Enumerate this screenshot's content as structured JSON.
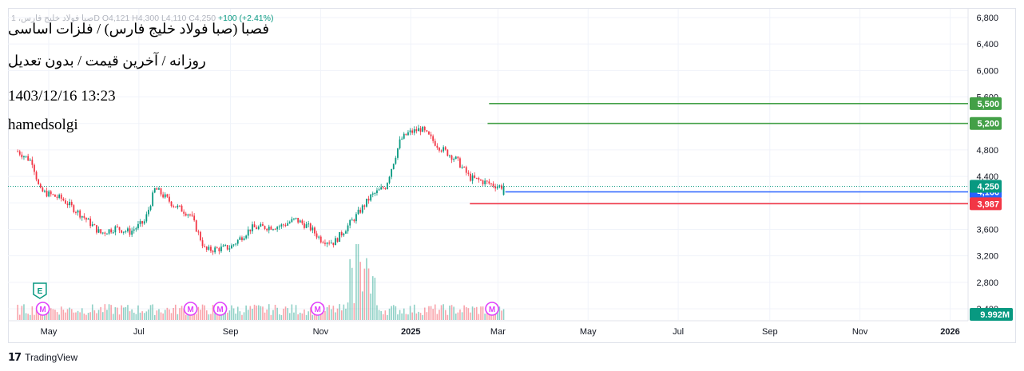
{
  "header": {
    "ohlc_text": "صبا فولاد خلیج فارس، 1D  O4,121  H4,300  L4,110  C4,250",
    "change_text": "+100 (+2.41%)"
  },
  "overlay": {
    "title": "فصبا (صبا فولاد خلیج فارس) / فلزات اساسی",
    "subtitle": "روزانه / آخرین قیمت / بدون تعدیل",
    "datetime": "1403/12/16 13:23",
    "author": "hamedsolgi"
  },
  "footer": {
    "brand": "TradingView",
    "brand_icon": "tradingview-logo-icon"
  },
  "colors": {
    "up": "#089981",
    "down": "#f23645",
    "grid": "#f0f3fa",
    "blue_line": "#2962ff",
    "green_line": "#43a047",
    "red_line": "#f23645",
    "dotted_last": "#089981",
    "event_m": "#e040fb"
  },
  "chart_data": {
    "type": "candlestick",
    "symbol": "فصبا",
    "timeframe": "1D",
    "ohlc": {
      "open": 4121,
      "high": 4300,
      "low": 4110,
      "close": 4250,
      "change": "+100 (+2.41%)"
    },
    "y_axis": {
      "ticks": [
        "6,800",
        "6,400",
        "6,000",
        "5,600",
        "5,200",
        "4,800",
        "4,400",
        "4,000",
        "3,600",
        "3,200",
        "2,800",
        "2,400"
      ],
      "tick_values": [
        6800,
        6400,
        6000,
        5600,
        5200,
        4800,
        4400,
        4000,
        3600,
        3200,
        2800,
        2400
      ],
      "range": [
        2250,
        6950
      ]
    },
    "x_axis": {
      "ticks": [
        "May",
        "Jul",
        "Sep",
        "Nov",
        "2025",
        "Mar",
        "May",
        "Jul",
        "Sep",
        "Nov",
        "2026"
      ],
      "bold": [
        "2025",
        "2026"
      ]
    },
    "price_path": [
      [
        "2024-04-10",
        4780
      ],
      [
        "2024-04-20",
        4620
      ],
      [
        "2024-04-25",
        4180
      ],
      [
        "2024-05-10",
        4060
      ],
      [
        "2024-05-25",
        3780
      ],
      [
        "2024-06-05",
        3540
      ],
      [
        "2024-06-15",
        3620
      ],
      [
        "2024-06-25",
        3560
      ],
      [
        "2024-07-05",
        3720
      ],
      [
        "2024-07-12",
        4220
      ],
      [
        "2024-07-25",
        3960
      ],
      [
        "2024-08-05",
        3820
      ],
      [
        "2024-08-15",
        3280
      ],
      [
        "2024-09-01",
        3330
      ],
      [
        "2024-09-15",
        3620
      ],
      [
        "2024-10-05",
        3650
      ],
      [
        "2024-10-15",
        3750
      ],
      [
        "2024-10-25",
        3620
      ],
      [
        "2024-11-01",
        3450
      ],
      [
        "2024-11-10",
        3400
      ],
      [
        "2024-11-25",
        3800
      ],
      [
        "2024-12-05",
        4100
      ],
      [
        "2024-12-15",
        4250
      ],
      [
        "2024-12-25",
        4950
      ],
      [
        "2024-12-30",
        5050
      ],
      [
        "2025-01-08",
        5120
      ],
      [
        "2025-01-20",
        4850
      ],
      [
        "2025-02-01",
        4650
      ],
      [
        "2025-02-10",
        4380
      ],
      [
        "2025-02-22",
        4300
      ],
      [
        "2025-03-01",
        4250
      ],
      [
        "2025-03-06",
        4250
      ]
    ],
    "volume_label": "9.992M",
    "horizontal_lines": [
      {
        "label": "5,500",
        "value": 5500,
        "color": "#43a047",
        "start": "2025-02-23"
      },
      {
        "label": "5,200",
        "value": 5200,
        "color": "#43a047",
        "start": "2025-02-22"
      },
      {
        "label": "4,166",
        "value": 4166,
        "color": "#2962ff",
        "start": "2025-03-06"
      },
      {
        "label": "3,987",
        "value": 3987,
        "color": "#f23645",
        "start": "2025-02-10"
      }
    ],
    "last_price": {
      "label": "4,250",
      "value": 4250
    },
    "events": [
      {
        "type": "E",
        "date": "2024-04-25"
      },
      {
        "type": "M",
        "date": "2024-04-27"
      },
      {
        "type": "M",
        "date": "2024-08-05"
      },
      {
        "type": "M",
        "date": "2024-08-25"
      },
      {
        "type": "M",
        "date": "2024-10-30"
      },
      {
        "type": "M",
        "date": "2025-02-25"
      }
    ]
  }
}
